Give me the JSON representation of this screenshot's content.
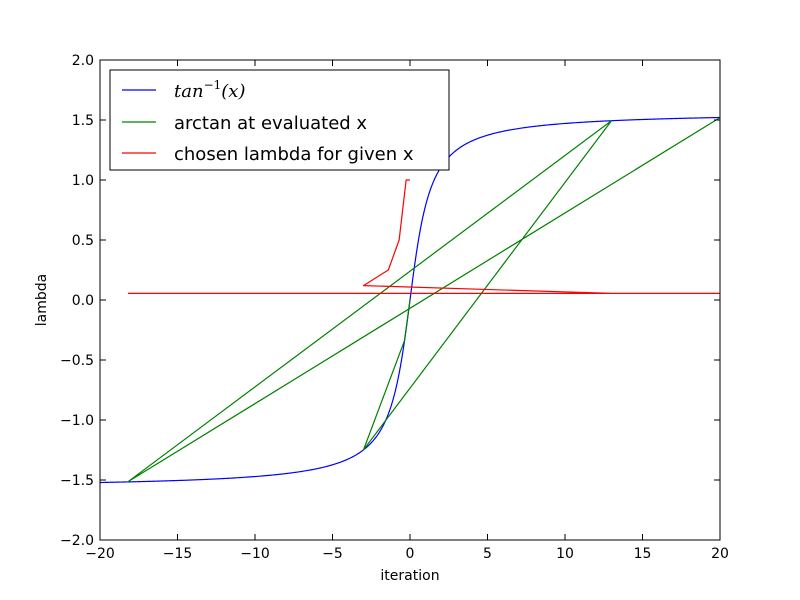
{
  "chart_data": {
    "type": "line",
    "xlabel": "iteration",
    "ylabel": "lambda",
    "xlim": [
      -20,
      20
    ],
    "ylim": [
      -2.0,
      2.0
    ],
    "xticks": [
      -20,
      -15,
      -10,
      -5,
      0,
      5,
      10,
      15,
      20
    ],
    "xtick_labels": [
      "−20",
      "−15",
      "−10",
      "−5",
      "0",
      "5",
      "10",
      "15",
      "20"
    ],
    "yticks": [
      -2.0,
      -1.5,
      -1.0,
      -0.5,
      0.0,
      0.5,
      1.0,
      1.5,
      2.0
    ],
    "ytick_labels": [
      "−2.0",
      "−1.5",
      "−1.0",
      "−0.5",
      "0.0",
      "0.5",
      "1.0",
      "1.5",
      "2.0"
    ],
    "grid": false,
    "legend_position": "top-left",
    "series": [
      {
        "name": "tan",
        "name_sup": "−1",
        "name_suffix": "(x)",
        "color": "#0000ff",
        "function": "arctan"
      },
      {
        "name": "arctan at evaluated x",
        "color": "#008000",
        "x": [
          -18.2,
          20,
          -18.2,
          13,
          -3,
          -0.35,
          0,
          -0.35,
          -3,
          13
        ],
        "y": [
          -1.515,
          1.52,
          -1.515,
          1.494,
          -1.249,
          -0.3367,
          0,
          -0.3367,
          -1.249,
          1.494
        ]
      },
      {
        "name": "chosen lambda for given x",
        "color": "#ff0000",
        "x": [
          -18.2,
          20,
          13,
          -3,
          -1.4,
          -0.7,
          -0.25,
          0
        ],
        "y": [
          0.055,
          0.055,
          0.055,
          0.12,
          0.25,
          0.5,
          1.0,
          1.0
        ]
      }
    ]
  }
}
